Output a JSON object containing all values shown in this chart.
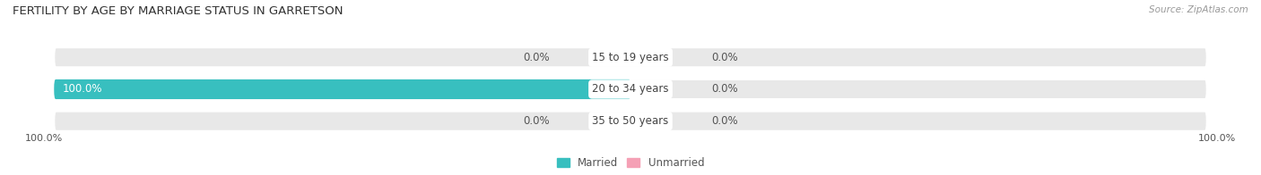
{
  "title": "FERTILITY BY AGE BY MARRIAGE STATUS IN GARRETSON",
  "source": "Source: ZipAtlas.com",
  "rows": [
    {
      "label": "15 to 19 years",
      "married": 0.0,
      "unmarried": 0.0
    },
    {
      "label": "20 to 34 years",
      "married": 100.0,
      "unmarried": 0.0
    },
    {
      "label": "35 to 50 years",
      "married": 0.0,
      "unmarried": 0.0
    }
  ],
  "married_color": "#38bfbf",
  "unmarried_color": "#f5a0b5",
  "bar_bg_color": "#e8e8e8",
  "bar_bg_color_light": "#f0f0f0",
  "title_fontsize": 9.5,
  "label_fontsize": 8.5,
  "source_fontsize": 7.5,
  "axis_label_fontsize": 8.0,
  "legend_married": "Married",
  "legend_unmarried": "Unmarried"
}
